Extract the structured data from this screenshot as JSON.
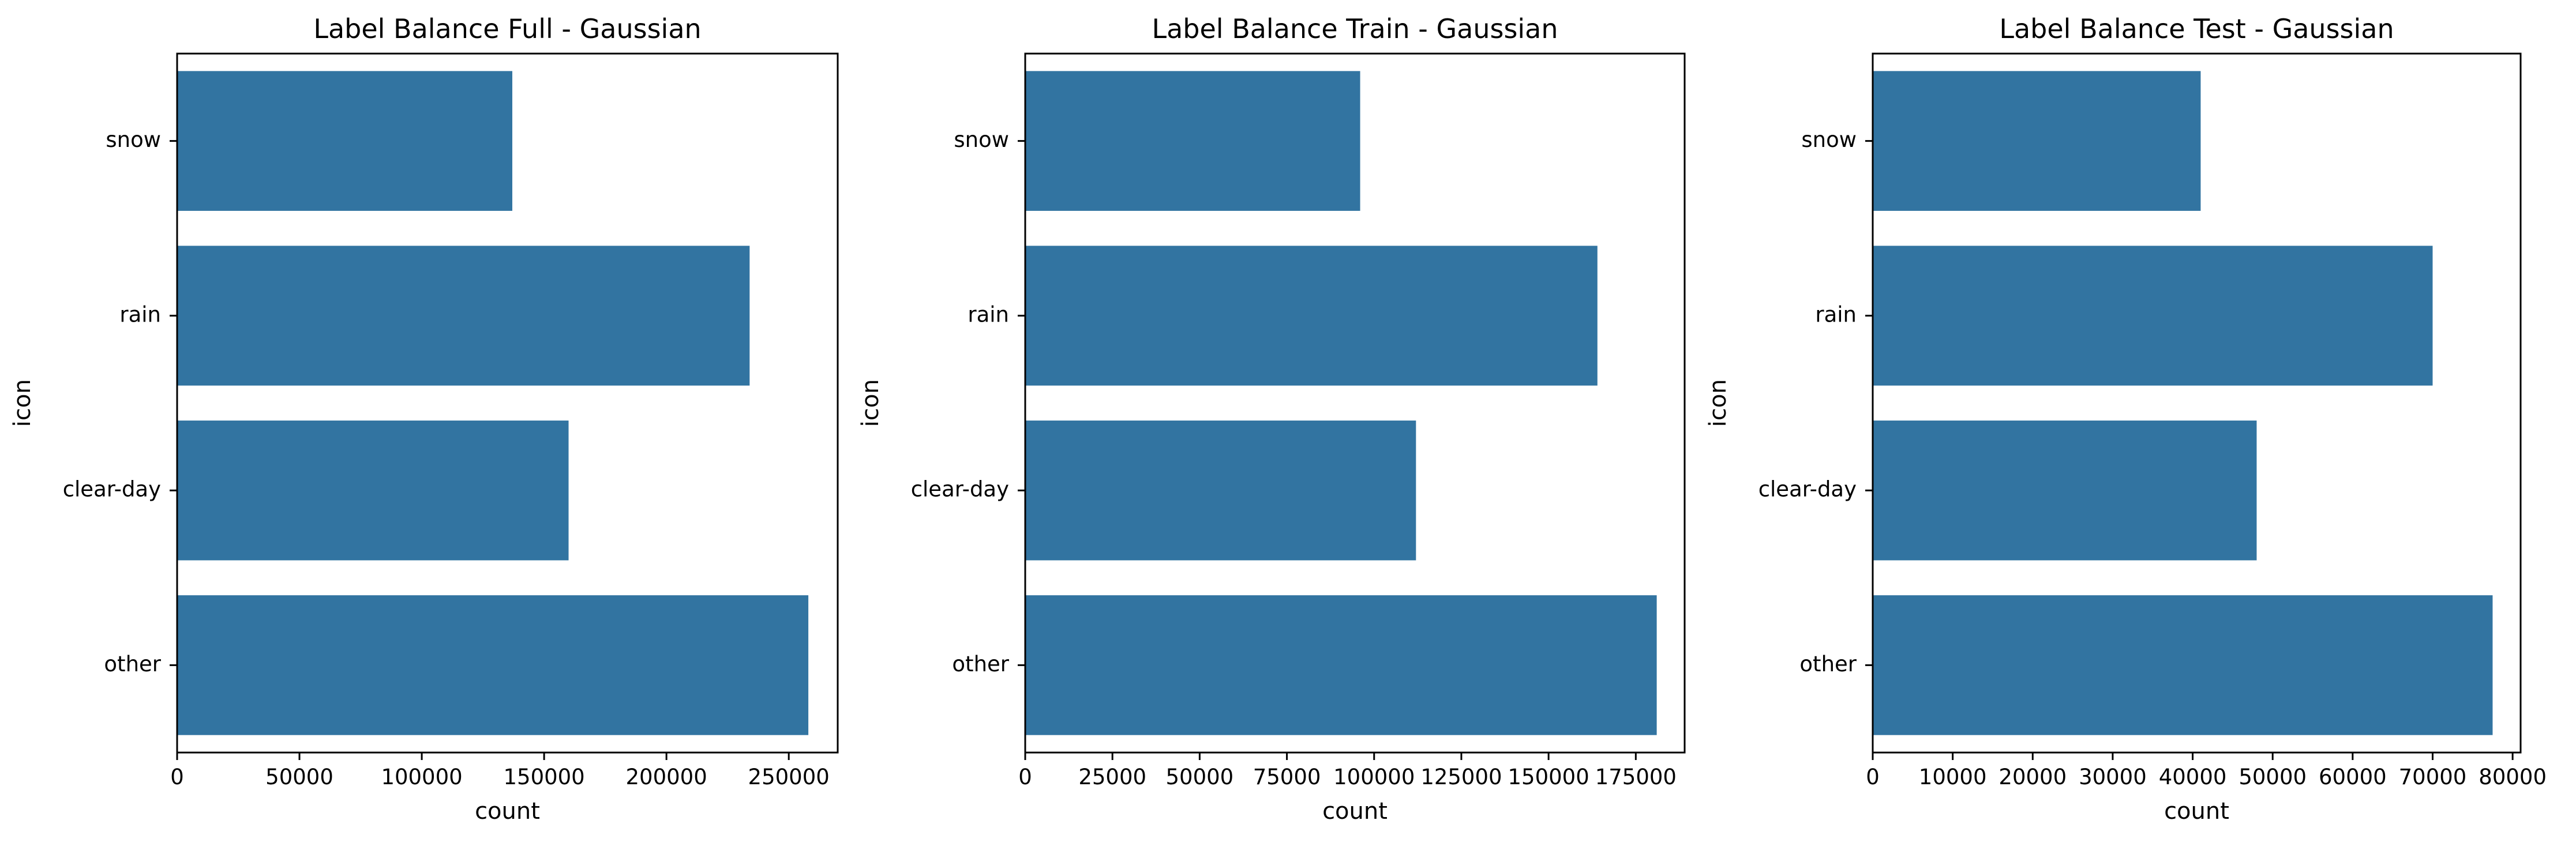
{
  "chart_data": [
    {
      "type": "bar",
      "orientation": "horizontal",
      "title": "Label Balance Full - Gaussian",
      "xlabel": "count",
      "ylabel": "icon",
      "categories": [
        "snow",
        "rain",
        "clear-day",
        "other"
      ],
      "values": [
        137000,
        234000,
        160000,
        258000
      ],
      "xlim": [
        0,
        270000
      ],
      "xticks": [
        0,
        50000,
        100000,
        150000,
        200000,
        250000
      ],
      "grid": false,
      "color": "#3274a1"
    },
    {
      "type": "bar",
      "orientation": "horizontal",
      "title": "Label Balance Train - Gaussian",
      "xlabel": "count",
      "ylabel": "icon",
      "categories": [
        "snow",
        "rain",
        "clear-day",
        "other"
      ],
      "values": [
        96000,
        164000,
        112000,
        181000
      ],
      "xlim": [
        0,
        189000
      ],
      "xticks": [
        0,
        25000,
        50000,
        75000,
        100000,
        125000,
        150000,
        175000
      ],
      "grid": false,
      "color": "#3274a1"
    },
    {
      "type": "bar",
      "orientation": "horizontal",
      "title": "Label Balance Test - Gaussian",
      "xlabel": "count",
      "ylabel": "icon",
      "categories": [
        "snow",
        "rain",
        "clear-day",
        "other"
      ],
      "values": [
        41000,
        70000,
        48000,
        77500
      ],
      "xlim": [
        0,
        81000
      ],
      "xticks": [
        0,
        10000,
        20000,
        30000,
        40000,
        50000,
        60000,
        70000,
        80000
      ],
      "grid": false,
      "color": "#3274a1"
    }
  ]
}
